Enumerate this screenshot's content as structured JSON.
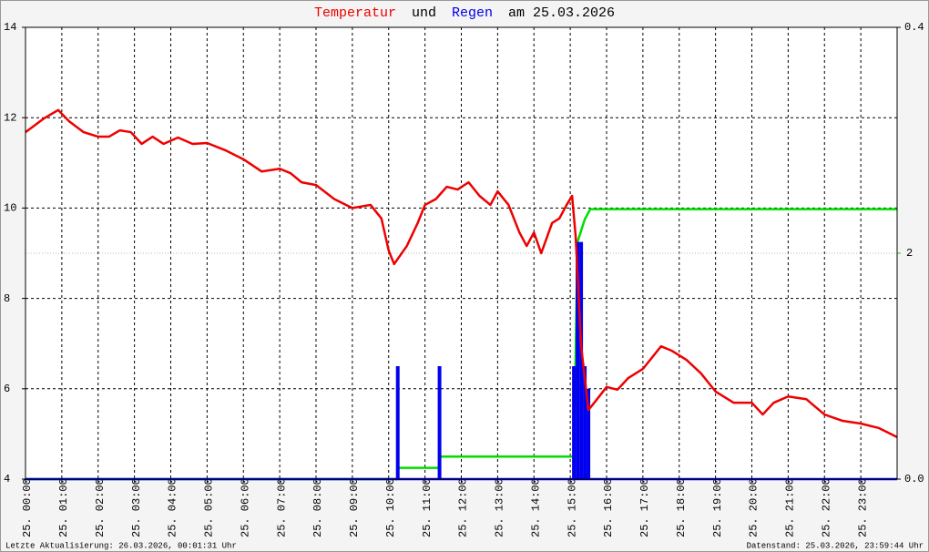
{
  "chart_data": {
    "type": "line",
    "title_parts": [
      "und",
      "am 25.03.2026"
    ],
    "footer_left": "Letzte Aktualisierung: 26.03.2026, 00:01:31 Uhr",
    "footer_right": "Datenstand: 25.03.2026, 23:59:44 Uhr",
    "xlim": [
      0,
      24
    ],
    "xticks": [
      {
        "value": 0,
        "label": "25. 00:00"
      },
      {
        "value": 1,
        "label": "25. 01:00"
      },
      {
        "value": 2,
        "label": "25. 02:00"
      },
      {
        "value": 3,
        "label": "25. 03:00"
      },
      {
        "value": 4,
        "label": "25. 04:00"
      },
      {
        "value": 5,
        "label": "25. 05:00"
      },
      {
        "value": 6,
        "label": "25. 06:00"
      },
      {
        "value": 7,
        "label": "25. 07:00"
      },
      {
        "value": 8,
        "label": "25. 08:00"
      },
      {
        "value": 9,
        "label": "25. 09:00"
      },
      {
        "value": 10,
        "label": "25. 10:00"
      },
      {
        "value": 11,
        "label": "25. 11:00"
      },
      {
        "value": 12,
        "label": "25. 12:00"
      },
      {
        "value": 13,
        "label": "25. 13:00"
      },
      {
        "value": 14,
        "label": "25. 14:00"
      },
      {
        "value": 15,
        "label": "25. 15:00"
      },
      {
        "value": 16,
        "label": "25. 16:00"
      },
      {
        "value": 17,
        "label": "25. 17:00"
      },
      {
        "value": 18,
        "label": "25. 18:00"
      },
      {
        "value": 19,
        "label": "25. 19:00"
      },
      {
        "value": 20,
        "label": "25. 20:00"
      },
      {
        "value": 21,
        "label": "25. 21:00"
      },
      {
        "value": 22,
        "label": "25. 22:00"
      },
      {
        "value": 23,
        "label": "25. 23:00"
      }
    ],
    "ylim": [
      4,
      14
    ],
    "yticks": [
      4,
      6,
      8,
      10,
      12,
      14
    ],
    "y2lim": [
      0,
      0.4
    ],
    "y2ticks": [
      {
        "value": 0,
        "label": "0.0"
      },
      {
        "value": 0.4,
        "label": "0.4"
      }
    ],
    "y3lim": [
      0,
      4
    ],
    "y3ticks": [
      2
    ],
    "y3color": "#00dd00",
    "grid": true,
    "series": [
      {
        "name": "Temperatur",
        "color": "#ee0000",
        "type": "line",
        "x": [
          0,
          0.5,
          0.9,
          1.2,
          1.6,
          2.0,
          2.3,
          2.6,
          2.9,
          3.2,
          3.5,
          3.8,
          4.2,
          4.6,
          5.0,
          5.5,
          6.0,
          6.5,
          7.0,
          7.3,
          7.6,
          8.0,
          8.5,
          9.0,
          9.5,
          9.8,
          10.0,
          10.15,
          10.5,
          10.8,
          11.0,
          11.3,
          11.6,
          11.9,
          12.2,
          12.5,
          12.8,
          13.0,
          13.3,
          13.6,
          13.8,
          14.0,
          14.2,
          14.5,
          14.7,
          14.9,
          15.05,
          15.15,
          15.3,
          15.5,
          15.7,
          16.0,
          16.3,
          16.6,
          17.0,
          17.5,
          17.8,
          18.2,
          18.6,
          19.0,
          19.5,
          20.0,
          20.3,
          20.6,
          21.0,
          21.5,
          22.0,
          22.5,
          23.0,
          23.5,
          24.0
        ],
        "values": [
          11.68,
          11.98,
          12.17,
          11.92,
          11.68,
          11.58,
          11.58,
          11.72,
          11.68,
          11.42,
          11.58,
          11.42,
          11.56,
          11.42,
          11.44,
          11.28,
          11.08,
          10.81,
          10.87,
          10.77,
          10.57,
          10.51,
          10.2,
          10.0,
          10.07,
          9.77,
          9.06,
          8.76,
          9.16,
          9.67,
          10.07,
          10.2,
          10.47,
          10.41,
          10.57,
          10.27,
          10.07,
          10.37,
          10.07,
          9.46,
          9.16,
          9.46,
          9.0,
          9.67,
          9.77,
          10.07,
          10.27,
          9.36,
          6.94,
          5.53,
          5.73,
          6.04,
          5.98,
          6.24,
          6.44,
          6.94,
          6.84,
          6.64,
          6.34,
          5.94,
          5.69,
          5.69,
          5.43,
          5.69,
          5.83,
          5.77,
          5.43,
          5.29,
          5.23,
          5.13,
          4.93
        ]
      },
      {
        "name": "Regen",
        "color": "#0000ee",
        "type": "bar",
        "axis": "y2",
        "x": [
          10.25,
          11.4,
          15.1,
          15.2,
          15.3,
          15.4,
          15.5
        ],
        "values": [
          0.1,
          0.1,
          0.1,
          0.21,
          0.21,
          0.1,
          0.08
        ]
      },
      {
        "color": "#00dd00",
        "type": "line",
        "axis": "y3",
        "x": [
          0,
          10.25,
          10.25,
          11.4,
          11.4,
          15.1,
          15.2,
          15.4,
          15.55,
          24
        ],
        "values": [
          0,
          0,
          0.1,
          0.1,
          0.2,
          0.2,
          2.1,
          2.3,
          2.39,
          2.39
        ]
      }
    ]
  }
}
